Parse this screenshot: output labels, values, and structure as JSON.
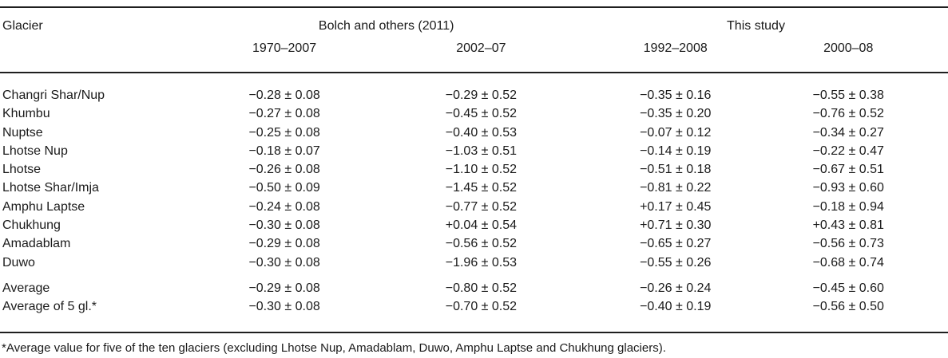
{
  "table": {
    "col_header_left": "Glacier",
    "group_headers": {
      "bolch": "Bolch and others (2011)",
      "this_study": "This study"
    },
    "period_headers": [
      "1970–2007",
      "2002–07",
      "1992–2008",
      "2000–08"
    ],
    "rows": [
      {
        "name": "Changri Shar/Nup",
        "values": [
          "−0.28 ± 0.08",
          "−0.29 ± 0.52",
          "−0.35 ± 0.16",
          "−0.55 ± 0.38"
        ]
      },
      {
        "name": "Khumbu",
        "values": [
          "−0.27 ± 0.08",
          "−0.45 ± 0.52",
          "−0.35 ± 0.20",
          "−0.76 ± 0.52"
        ]
      },
      {
        "name": "Nuptse",
        "values": [
          "−0.25 ± 0.08",
          "−0.40 ± 0.53",
          "−0.07 ± 0.12",
          "−0.34 ± 0.27"
        ]
      },
      {
        "name": "Lhotse Nup",
        "values": [
          "−0.18 ± 0.07",
          "−1.03 ± 0.51",
          "−0.14 ± 0.19",
          "−0.22 ± 0.47"
        ]
      },
      {
        "name": "Lhotse",
        "values": [
          "−0.26 ± 0.08",
          "−1.10 ± 0.52",
          "−0.51 ± 0.18",
          "−0.67 ± 0.51"
        ]
      },
      {
        "name": "Lhotse Shar/Imja",
        "values": [
          "−0.50 ± 0.09",
          "−1.45 ± 0.52",
          "−0.81 ± 0.22",
          "−0.93 ± 0.60"
        ]
      },
      {
        "name": "Amphu Laptse",
        "values": [
          "−0.24 ± 0.08",
          "−0.77 ± 0.52",
          "+0.17 ± 0.45",
          "−0.18 ± 0.94"
        ]
      },
      {
        "name": "Chukhung",
        "values": [
          "−0.30 ± 0.08",
          "+0.04 ± 0.54",
          "+0.71 ± 0.30",
          "+0.43 ± 0.81"
        ]
      },
      {
        "name": "Amadablam",
        "values": [
          "−0.29 ± 0.08",
          "−0.56 ± 0.52",
          "−0.65 ± 0.27",
          "−0.56 ± 0.73"
        ]
      },
      {
        "name": "Duwo",
        "values": [
          "−0.30 ± 0.08",
          "−1.96 ± 0.53",
          "−0.55 ± 0.26",
          "−0.68 ± 0.74"
        ]
      }
    ],
    "summary_rows": [
      {
        "name": "Average",
        "values": [
          "−0.29 ± 0.08",
          "−0.80 ± 0.52",
          "−0.26 ± 0.24",
          "−0.45 ± 0.60"
        ]
      },
      {
        "name": "Average of 5 gl.*",
        "values": [
          "−0.30 ± 0.08",
          "−0.70 ± 0.52",
          "−0.40 ± 0.19",
          "−0.56 ± 0.50"
        ]
      }
    ],
    "footnote": "*Average value for five of the ten glaciers (excluding Lhotse Nup, Amadablam, Duwo, Amphu Laptse and Chukhung glaciers)."
  },
  "colors": {
    "text": "#1a1a1a",
    "rule": "#1f1f1f",
    "background": "#ffffff"
  }
}
